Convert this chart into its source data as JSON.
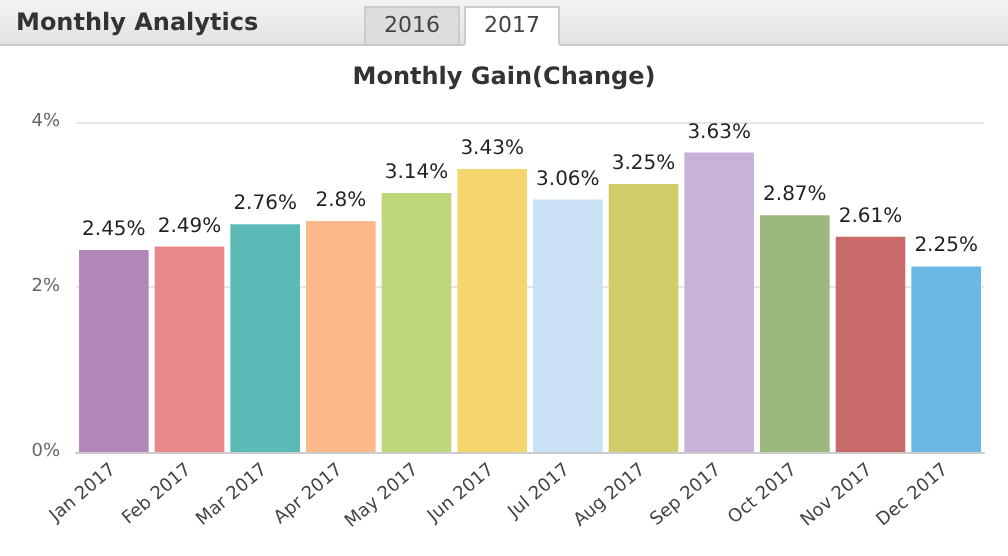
{
  "chart_data": {
    "type": "bar",
    "title": "Monthly Analytics",
    "subtitle": "Monthly Gain(Change)",
    "annotations": [
      "2016",
      "2017"
    ],
    "categories": [
      "Jan 2017",
      "Feb 2017",
      "Mar 2017",
      "Apr 2017",
      "May 2017",
      "Jun 2017",
      "Jul 2017",
      "Aug 2017",
      "Sep 2017",
      "Oct 2017",
      "Nov 2017",
      "Dec 2017"
    ],
    "values": [
      2.45,
      2.49,
      2.76,
      2.8,
      3.14,
      3.43,
      3.06,
      3.25,
      3.63,
      2.87,
      2.61,
      2.25
    ],
    "value_labels": [
      "2.45%",
      "2.49%",
      "2.76%",
      "2.8%",
      "3.14%",
      "3.43%",
      "3.06%",
      "3.25%",
      "3.63%",
      "2.87%",
      "2.61%",
      "2.25%"
    ],
    "colors": [
      "#b186b8",
      "#e8888a",
      "#5bbab5",
      "#fdb98c",
      "#bfd67a",
      "#f5d56e",
      "#c9e0f5",
      "#d3cc6a",
      "#c7b3d9",
      "#9cb87c",
      "#c96a6a",
      "#6ab8e3"
    ],
    "ylim": [
      0,
      4
    ],
    "yticks": [
      {
        "value": 0,
        "label": "0%"
      },
      {
        "value": 2,
        "label": "2%"
      },
      {
        "value": 4,
        "label": "4%"
      }
    ],
    "grid": "y"
  }
}
